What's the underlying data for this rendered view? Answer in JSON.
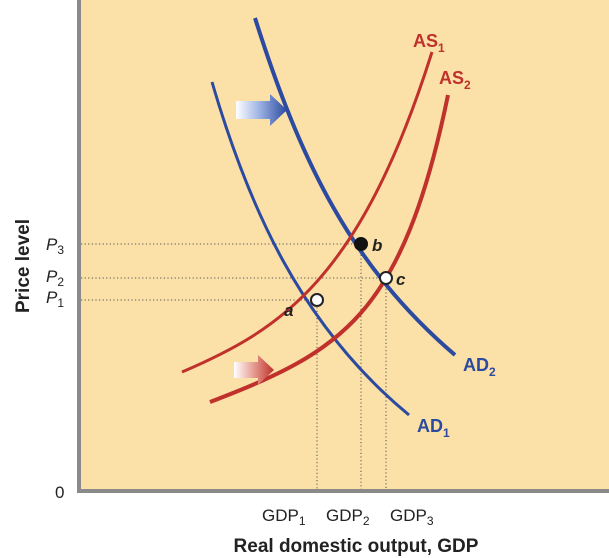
{
  "axes": {
    "y_label": "Price level",
    "x_label": "Real domestic output, GDP",
    "origin": "0"
  },
  "price_labels": [
    {
      "base": "P",
      "sub": "3"
    },
    {
      "base": "P",
      "sub": "2"
    },
    {
      "base": "P",
      "sub": "1"
    }
  ],
  "gdp_labels": [
    {
      "base": "GDP",
      "sub": "1"
    },
    {
      "base": "GDP",
      "sub": "2"
    },
    {
      "base": "GDP",
      "sub": "3"
    }
  ],
  "curves": {
    "as1": {
      "base": "AS",
      "sub": "1"
    },
    "as2": {
      "base": "AS",
      "sub": "2"
    },
    "ad1": {
      "base": "AD",
      "sub": "1"
    },
    "ad2": {
      "base": "AD",
      "sub": "2"
    }
  },
  "points": {
    "a": "a",
    "b": "b",
    "c": "c"
  },
  "colors": {
    "background": "#fbe0a8",
    "as_curve": "#c0312b",
    "ad_curve": "#2b4aa0",
    "axis": "#8a8a8a",
    "guide": "#555555",
    "text": "#222222"
  }
}
